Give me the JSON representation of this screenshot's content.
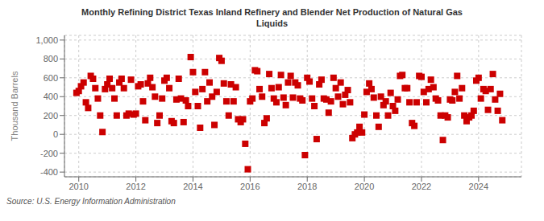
{
  "chart_data": {
    "type": "scatter",
    "title": "Monthly Refining District Texas Inland Refinery and Blender Net Production of Natural Gas\nLiquids",
    "ylabel": "Thousand Barrels",
    "source": "Source: U.S. Energy Information Administration",
    "xlim": [
      2009.5,
      2025.5
    ],
    "ylim": [
      -450,
      1050
    ],
    "xticks": [
      2010,
      2012,
      2014,
      2016,
      2018,
      2020,
      2022,
      2024
    ],
    "yticks": [
      -400,
      -200,
      0,
      200,
      400,
      600,
      800,
      {
        "value": 1000,
        "label": "1,000"
      }
    ],
    "color": "#cc0000",
    "marker": "square",
    "grid": true,
    "x": [
      2009.92,
      2010.0,
      2010.08,
      2010.17,
      2010.25,
      2010.33,
      2010.42,
      2010.5,
      2010.58,
      2010.67,
      2010.75,
      2010.83,
      2010.92,
      2011.0,
      2011.08,
      2011.17,
      2011.25,
      2011.33,
      2011.42,
      2011.5,
      2011.58,
      2011.67,
      2011.75,
      2011.83,
      2011.92,
      2012.0,
      2012.08,
      2012.17,
      2012.25,
      2012.33,
      2012.42,
      2012.5,
      2012.58,
      2012.67,
      2012.75,
      2012.83,
      2012.92,
      2013.0,
      2013.08,
      2013.17,
      2013.25,
      2013.33,
      2013.42,
      2013.5,
      2013.58,
      2013.67,
      2013.75,
      2013.83,
      2013.92,
      2014.0,
      2014.08,
      2014.17,
      2014.25,
      2014.33,
      2014.42,
      2014.5,
      2014.58,
      2014.67,
      2014.75,
      2014.83,
      2014.92,
      2015.0,
      2015.08,
      2015.17,
      2015.25,
      2015.33,
      2015.42,
      2015.5,
      2015.58,
      2015.67,
      2015.75,
      2015.83,
      2015.92,
      2016.0,
      2016.08,
      2016.17,
      2016.25,
      2016.33,
      2016.42,
      2016.5,
      2016.58,
      2016.67,
      2016.75,
      2016.83,
      2016.92,
      2017.0,
      2017.08,
      2017.17,
      2017.25,
      2017.33,
      2017.42,
      2017.5,
      2017.58,
      2017.67,
      2017.75,
      2017.83,
      2017.92,
      2018.0,
      2018.08,
      2018.17,
      2018.25,
      2018.33,
      2018.42,
      2018.5,
      2018.58,
      2018.67,
      2018.75,
      2018.83,
      2018.92,
      2019.0,
      2019.08,
      2019.17,
      2019.25,
      2019.33,
      2019.42,
      2019.5,
      2019.58,
      2019.67,
      2019.75,
      2019.83,
      2019.92,
      2020.0,
      2020.08,
      2020.17,
      2020.25,
      2020.33,
      2020.42,
      2020.5,
      2020.58,
      2020.67,
      2020.75,
      2020.83,
      2020.92,
      2021.0,
      2021.08,
      2021.17,
      2021.25,
      2021.33,
      2021.42,
      2021.5,
      2021.58,
      2021.67,
      2021.75,
      2021.83,
      2021.92,
      2022.0,
      2022.08,
      2022.17,
      2022.25,
      2022.33,
      2022.42,
      2022.5,
      2022.58,
      2022.67,
      2022.75,
      2022.83,
      2022.92,
      2023.0,
      2023.08,
      2023.17,
      2023.25,
      2023.33,
      2023.42,
      2023.5,
      2023.58,
      2023.67,
      2023.75,
      2023.83,
      2023.92,
      2024.0,
      2024.08,
      2024.17,
      2024.25,
      2024.33,
      2024.42,
      2024.5,
      2024.58,
      2024.67,
      2024.75,
      2024.83
    ],
    "values": [
      440,
      460,
      510,
      550,
      340,
      280,
      620,
      590,
      490,
      380,
      200,
      25,
      480,
      530,
      590,
      490,
      380,
      200,
      550,
      590,
      490,
      200,
      220,
      580,
      210,
      220,
      510,
      530,
      350,
      150,
      540,
      600,
      500,
      400,
      120,
      200,
      380,
      570,
      600,
      490,
      140,
      120,
      370,
      590,
      380,
      130,
      360,
      300,
      820,
      660,
      450,
      300,
      70,
      480,
      660,
      350,
      550,
      400,
      100,
      450,
      810,
      780,
      540,
      350,
      200,
      530,
      350,
      500,
      160,
      130,
      160,
      -100,
      -370,
      350,
      380,
      680,
      670,
      480,
      400,
      120,
      170,
      640,
      490,
      380,
      340,
      500,
      630,
      390,
      310,
      550,
      620,
      390,
      550,
      520,
      380,
      360,
      -220,
      600,
      560,
      380,
      300,
      -50,
      530,
      580,
      380,
      370,
      230,
      350,
      600,
      490,
      400,
      550,
      320,
      420,
      470,
      340,
      -40,
      0,
      20,
      80,
      20,
      210,
      450,
      540,
      480,
      390,
      200,
      80,
      400,
      310,
      350,
      200,
      440,
      300,
      250,
      370,
      620,
      630,
      490,
      490,
      340,
      120,
      90,
      340,
      620,
      610,
      450,
      340,
      480,
      580,
      500,
      380,
      360,
      200,
      -60,
      200,
      180,
      370,
      360,
      450,
      620,
      380,
      490,
      200,
      140,
      180,
      200,
      250,
      570,
      600,
      380,
      480,
      460,
      260,
      480,
      640,
      370,
      250,
      430,
      150
    ]
  }
}
